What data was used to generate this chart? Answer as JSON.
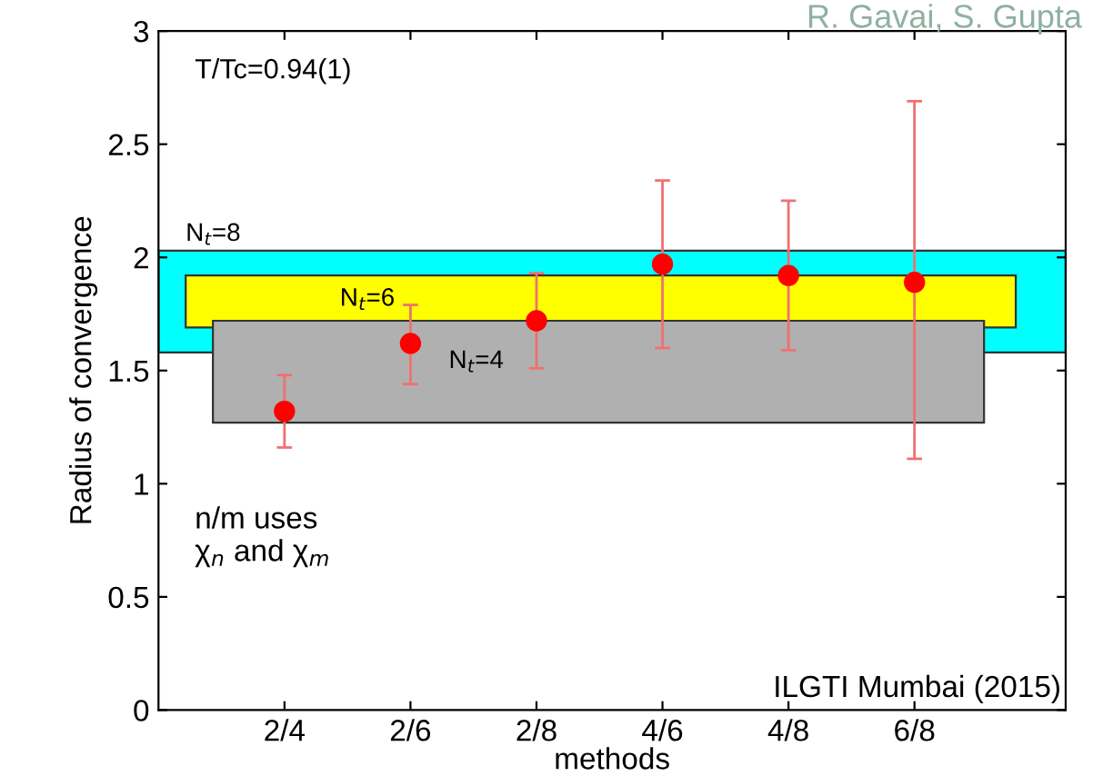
{
  "chart_data": {
    "type": "scatter",
    "xlabel": "methods",
    "ylabel": "Radius of convergence",
    "categories": [
      "2/4",
      "2/6",
      "2/8",
      "4/6",
      "4/8",
      "6/8"
    ],
    "series": [
      {
        "color": "#ff0000",
        "values": [
          1.32,
          1.62,
          1.72,
          1.97,
          1.92,
          1.89
        ],
        "errors": [
          [
            1.16,
            1.48
          ],
          [
            1.44,
            1.79
          ],
          [
            1.51,
            1.93
          ],
          [
            1.6,
            2.34
          ],
          [
            1.59,
            2.25
          ],
          [
            1.11,
            2.69
          ]
        ]
      }
    ],
    "marker": "circle",
    "ylim": [
      0,
      3
    ],
    "yticks": [
      0,
      0.5,
      1,
      1.5,
      2,
      2.5,
      3
    ],
    "bands": [
      {
        "axis": "y",
        "from": 1.58,
        "to": 2.03,
        "label": "N$_{t}$=8",
        "color": "#00ffff"
      },
      {
        "axis": "y",
        "from": 1.69,
        "to": 1.92,
        "label": "N$_{t}$=6",
        "color": "#ffff00"
      },
      {
        "axis": "y",
        "from": 1.27,
        "to": 1.72,
        "label": "N$_{t}$=4",
        "color": "#b0b0b0"
      }
    ],
    "annotations": [
      "T/Tc=0.94(1)",
      "n/m uses\nχ$_{n}$ and χ$_{m}$",
      "ILGTI Mumbai (2015)",
      "R. Gavai, S. Gupta"
    ],
    "grid": false,
    "legend": false
  }
}
